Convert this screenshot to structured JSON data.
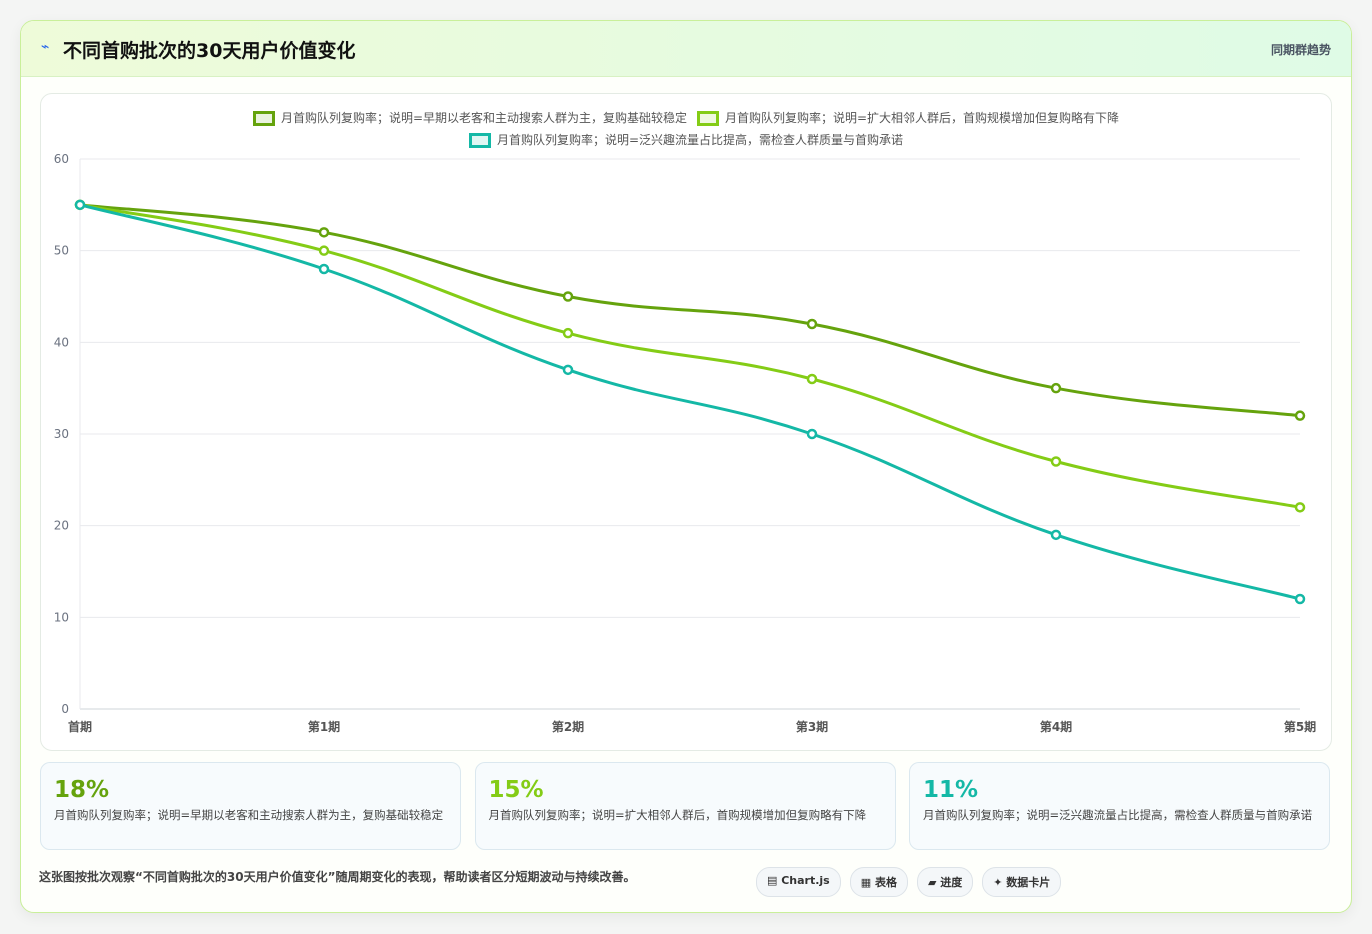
{
  "header": {
    "icon": "⌁",
    "title": "不同首购批次的30天用户价值变化",
    "tag": "同期群趋势"
  },
  "chart_data": {
    "type": "line",
    "categories": [
      "首期",
      "第1期",
      "第2期",
      "第3期",
      "第4期",
      "第5期"
    ],
    "series": [
      {
        "name": "月首购队列复购率；说明=早期以老客和主动搜索人群为主，复购基础较稳定",
        "color": "#65a30d",
        "values": [
          55,
          52,
          45,
          42,
          35,
          32
        ]
      },
      {
        "name": "月首购队列复购率；说明=扩大相邻人群后，首购规模增加但复购略有下降",
        "color": "#84cc16",
        "values": [
          55,
          50,
          41,
          36,
          27,
          22
        ]
      },
      {
        "name": "月首购队列复购率；说明=泛兴趣流量占比提高，需检查人群质量与首购承诺",
        "color": "#14b8a6",
        "values": [
          55,
          48,
          37,
          30,
          19,
          12
        ]
      }
    ],
    "ylim": [
      0,
      60
    ],
    "yticks": [
      0,
      10,
      20,
      30,
      40,
      50,
      60
    ],
    "grid": true,
    "legend": "top"
  },
  "stats": [
    "18%",
    "15%",
    "11%"
  ],
  "footer": {
    "note": "这张图按批次观察“不同首购批次的30天用户价值变化”随周期变化的表现，帮助读者区分短期波动与持续改善。",
    "chips": [
      "▤ Chart.js",
      "▦ 表格",
      "▰ 进度",
      "✦ 数据卡片"
    ]
  }
}
